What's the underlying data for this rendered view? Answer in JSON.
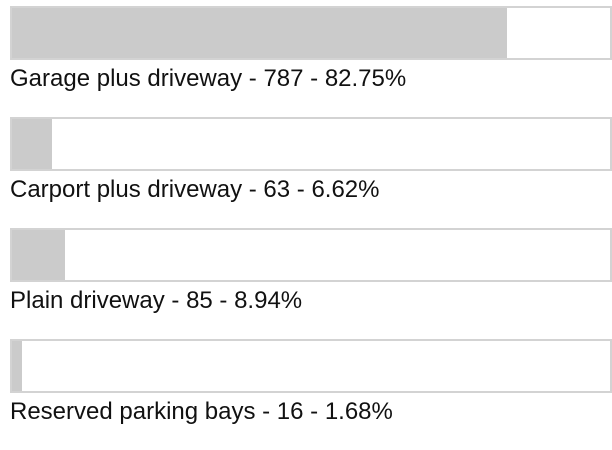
{
  "poll": {
    "xlim": [
      0,
      100
    ],
    "items": [
      {
        "label": "Garage plus driveway - 787 - 82.75%",
        "value": 82.75
      },
      {
        "label": "Carport plus driveway - 63 - 6.62%",
        "value": 6.62
      },
      {
        "label": "Plain driveway - 85 - 8.94%",
        "value": 8.94
      },
      {
        "label": "Reserved parking bays - 16 - 1.68%",
        "value": 1.68
      }
    ]
  }
}
